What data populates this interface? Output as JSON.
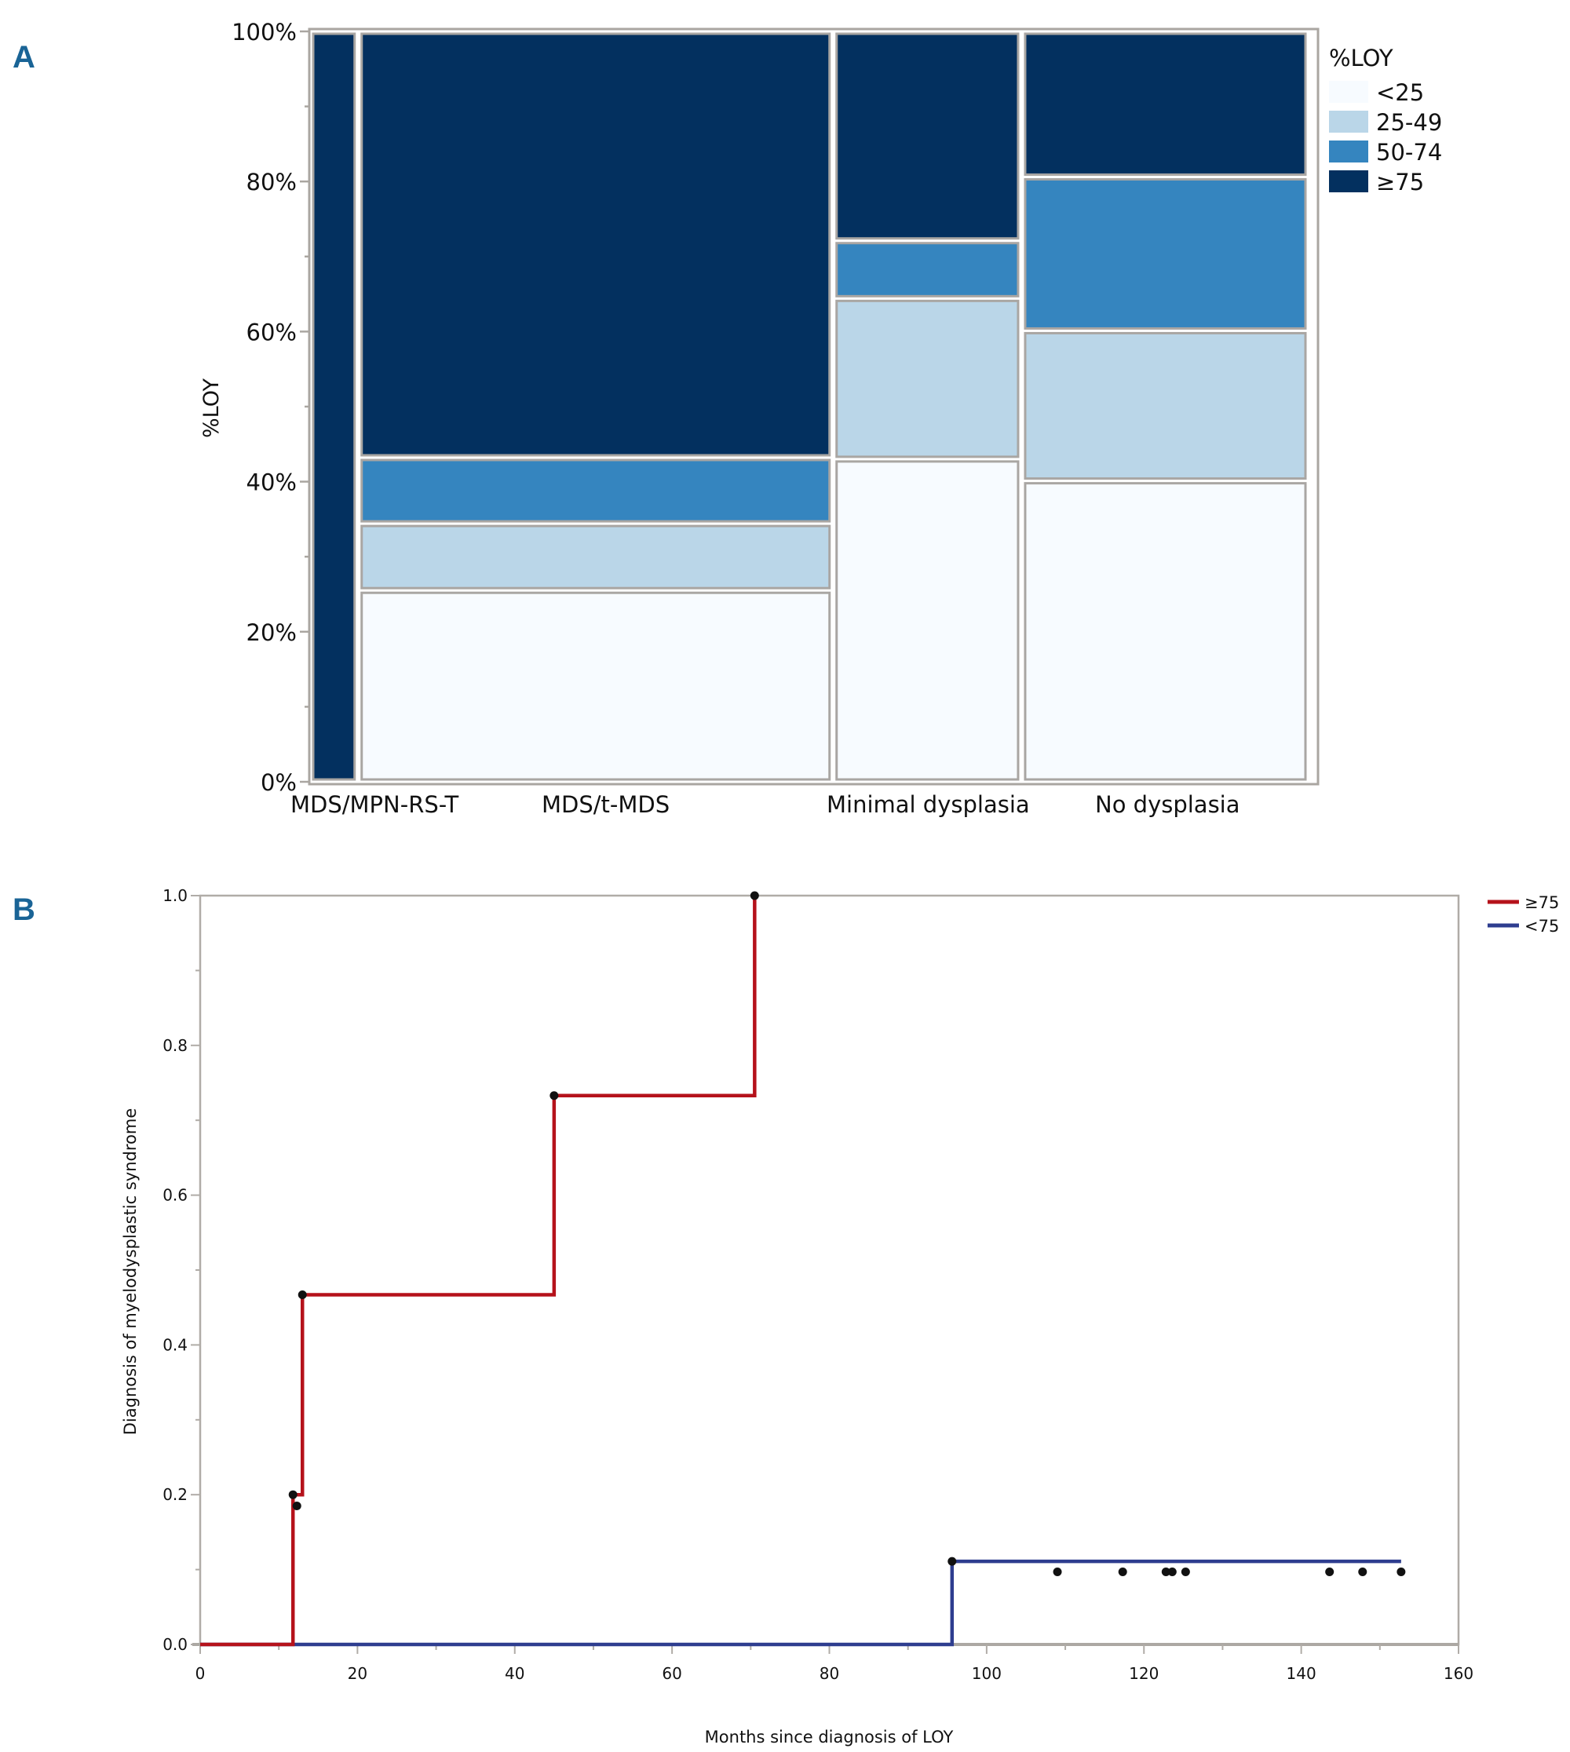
{
  "chart_data": [
    {
      "type": "mosaic",
      "panel_label": "A",
      "ylabel": "%LOY",
      "xlabel": "",
      "ylim": [
        0,
        100
      ],
      "y_ticks": [
        "0%",
        "20%",
        "40%",
        "60%",
        "80%",
        "100%"
      ],
      "y_tick_values": [
        0,
        20,
        40,
        60,
        80,
        100
      ],
      "legend": {
        "title": "%LOY",
        "position": "right",
        "entries": [
          {
            "label": "<25",
            "color": "#f7fbff"
          },
          {
            "label": "25-49",
            "color": "#bad6e8"
          },
          {
            "label": "50-74",
            "color": "#3585bf"
          },
          {
            "label": "≥75",
            "color": "#03305f"
          }
        ]
      },
      "categories": [
        "MDS/MPN-RS-T",
        "MDS/t-MDS",
        "Minimal dysplasia",
        "No dysplasia"
      ],
      "column_width_fractions": [
        0.047,
        0.476,
        0.189,
        0.288
      ],
      "series": [
        {
          "name": "<25",
          "values": [
            0,
            25.5,
            43.0,
            40.1
          ]
        },
        {
          "name": "25-49",
          "values": [
            0,
            8.9,
            21.4,
            20.0
          ]
        },
        {
          "name": "50-74",
          "values": [
            0,
            8.8,
            7.7,
            20.5
          ]
        },
        {
          "name": "≥75",
          "values": [
            100,
            56.8,
            27.9,
            19.4
          ]
        }
      ]
    },
    {
      "type": "line",
      "subtype": "step",
      "panel_label": "B",
      "xlabel": "Months since diagnosis of LOY",
      "ylabel": "Diagnosis of myelodysplastic syndrome",
      "xlim": [
        0,
        160
      ],
      "ylim": [
        0,
        1.0
      ],
      "x_ticks": [
        0,
        20,
        40,
        60,
        80,
        100,
        120,
        140,
        160
      ],
      "y_ticks": [
        "0.0",
        "0.2",
        "0.4",
        "0.6",
        "0.8",
        "1.0"
      ],
      "y_tick_values": [
        0,
        0.2,
        0.4,
        0.6,
        0.8,
        1.0
      ],
      "legend": {
        "position": "top-right"
      },
      "series": [
        {
          "name": "≥75",
          "color": "#b5121b",
          "steps": [
            [
              0,
              0
            ],
            [
              11.8,
              0.2
            ],
            [
              13.0,
              0.467
            ],
            [
              45.0,
              0.733
            ],
            [
              70.5,
              1.0
            ]
          ],
          "end_x": 70.5,
          "markers": [
            [
              11.8,
              0.2
            ],
            [
              12.3,
              0.185
            ],
            [
              13.0,
              0.467
            ],
            [
              45.0,
              0.733
            ],
            [
              70.5,
              1.0
            ]
          ]
        },
        {
          "name": "<75",
          "color": "#2e3d8f",
          "steps": [
            [
              0,
              0
            ],
            [
              95.6,
              0.111
            ]
          ],
          "end_x": 152.7,
          "markers": [
            [
              95.6,
              0.111
            ],
            [
              109.0,
              0.097
            ],
            [
              117.3,
              0.097
            ],
            [
              122.8,
              0.097
            ],
            [
              123.6,
              0.097
            ],
            [
              125.3,
              0.097
            ],
            [
              143.6,
              0.097
            ],
            [
              147.8,
              0.097
            ],
            [
              152.7,
              0.097
            ]
          ]
        }
      ]
    }
  ]
}
